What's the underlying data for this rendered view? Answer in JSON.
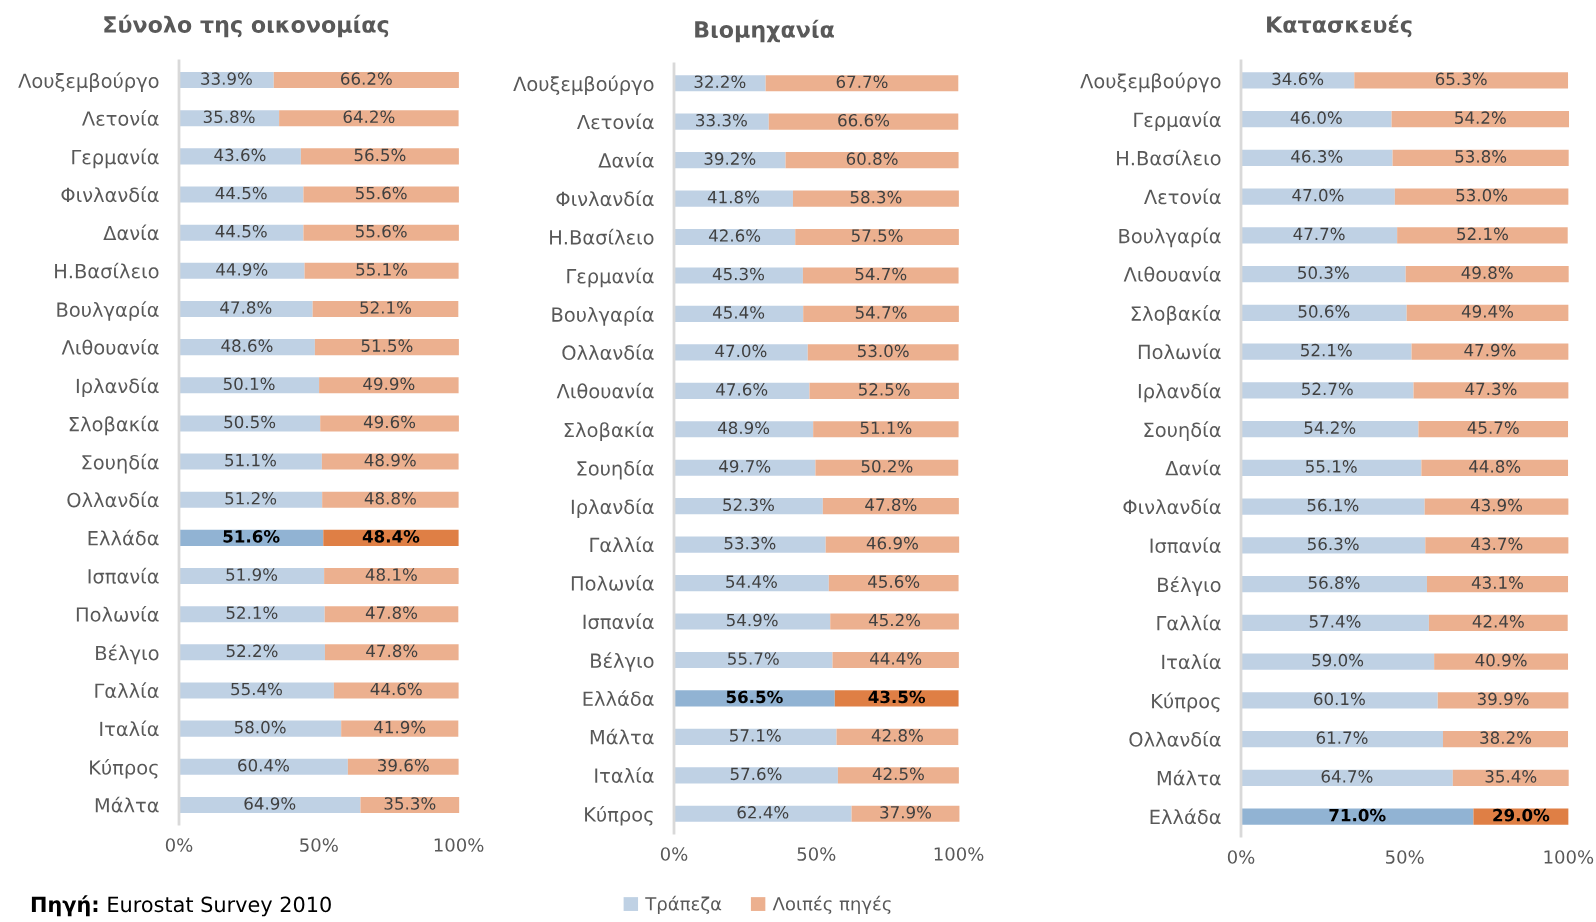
{
  "chart_data": [
    {
      "type": "bar",
      "orientation": "horizontal",
      "stacked": true,
      "title": "Σύνολο της οικονομίας",
      "categories": [
        "Λουξεμβούργο",
        "Λετονία",
        "Γερμανία",
        "Φινλανδία",
        "Δανία",
        "Η.Βασίλειο",
        "Βουλγαρία",
        "Λιθουανία",
        "Ιρλανδία",
        "Σλοβακία",
        "Σουηδία",
        "Ολλανδία",
        "Ελλάδα",
        "Ισπανία",
        "Πολωνία",
        "Βέλγιο",
        "Γαλλία",
        "Ιταλία",
        "Κύπρος",
        "Μάλτα"
      ],
      "series": [
        {
          "color": "#bfd1e4",
          "colors": [
            "#bfd1e4",
            "#bfd1e4",
            "#bfd1e4",
            "#bfd1e4",
            "#bfd1e4",
            "#bfd1e4",
            "#bfd1e4",
            "#bfd1e4",
            "#bfd1e4",
            "#bfd1e4",
            "#bfd1e4",
            "#bfd1e4",
            "#91b3d3",
            "#bfd1e4",
            "#bfd1e4",
            "#bfd1e4",
            "#bfd1e4",
            "#bfd1e4",
            "#bfd1e4",
            "#bfd1e4"
          ],
          "values": [
            33.9,
            35.8,
            43.6,
            44.5,
            44.5,
            44.9,
            47.8,
            48.6,
            50.1,
            50.5,
            51.1,
            51.2,
            51.6,
            51.9,
            52.1,
            52.2,
            55.4,
            58.0,
            60.4,
            64.9
          ],
          "value_labels": [
            "33.9%",
            "35.8%",
            "43.6%",
            "44.5%",
            "44.5%",
            "44.9%",
            "47.8%",
            "48.6%",
            "50.1%",
            "50.5%",
            "51.1%",
            "51.2%",
            "51.6%",
            "51.9%",
            "52.1%",
            "52.2%",
            "55.4%",
            "58.0%",
            "60.4%",
            "64.9%"
          ]
        },
        {
          "color": "#ecb08f",
          "colors": [
            "#ecb08f",
            "#ecb08f",
            "#ecb08f",
            "#ecb08f",
            "#ecb08f",
            "#ecb08f",
            "#ecb08f",
            "#ecb08f",
            "#ecb08f",
            "#ecb08f",
            "#ecb08f",
            "#ecb08f",
            "#df7f45",
            "#ecb08f",
            "#ecb08f",
            "#ecb08f",
            "#ecb08f",
            "#ecb08f",
            "#ecb08f",
            "#ecb08f"
          ],
          "values": [
            66.2,
            64.2,
            56.5,
            55.6,
            55.6,
            55.1,
            52.1,
            51.5,
            49.9,
            49.6,
            48.9,
            48.8,
            48.4,
            48.1,
            47.8,
            47.8,
            44.6,
            41.9,
            39.6,
            35.3
          ],
          "value_labels": [
            "66.2%",
            "64.2%",
            "56.5%",
            "55.6%",
            "55.6%",
            "55.1%",
            "52.1%",
            "51.5%",
            "49.9%",
            "49.6%",
            "48.9%",
            "48.8%",
            "48.4%",
            "48.1%",
            "47.8%",
            "47.8%",
            "44.6%",
            "41.9%",
            "39.6%",
            "35.3%"
          ]
        }
      ],
      "xlim": [
        0,
        100.5
      ],
      "xticks": [
        {
          "value": 0,
          "label": "0%"
        },
        {
          "value": 50,
          "label": "50%"
        },
        {
          "value": 100,
          "label": "100%"
        }
      ],
      "annotations": [
        "Πηγή: Eurostat Survey 2010"
      ]
    },
    {
      "type": "bar",
      "orientation": "horizontal",
      "stacked": true,
      "title": "Βιομηχανία",
      "categories": [
        "Λουξεμβούργο",
        "Λετονία",
        "Δανία",
        "Φινλανδία",
        "Η.Βασίλειο",
        "Γερμανία",
        "Βουλγαρία",
        "Ολλανδία",
        "Λιθουανία",
        "Σλοβακία",
        "Σουηδία",
        "Ιρλανδία",
        "Γαλλία",
        "Πολωνία",
        "Ισπανία",
        "Βέλγιο",
        "Ελλάδα",
        "Μάλτα",
        "Ιταλία",
        "Κύπρος"
      ],
      "series": [
        {
          "name": "Τράπεζα",
          "color": "#bfd1e4",
          "colors": [
            "#bfd1e4",
            "#bfd1e4",
            "#bfd1e4",
            "#bfd1e4",
            "#bfd1e4",
            "#bfd1e4",
            "#bfd1e4",
            "#bfd1e4",
            "#bfd1e4",
            "#bfd1e4",
            "#bfd1e4",
            "#bfd1e4",
            "#bfd1e4",
            "#bfd1e4",
            "#bfd1e4",
            "#bfd1e4",
            "#91b3d3",
            "#bfd1e4",
            "#bfd1e4",
            "#bfd1e4"
          ],
          "values": [
            32.2,
            33.3,
            39.2,
            41.8,
            42.6,
            45.3,
            45.4,
            47.0,
            47.6,
            48.9,
            49.7,
            52.3,
            53.3,
            54.4,
            54.9,
            55.7,
            56.5,
            57.1,
            57.6,
            62.4
          ],
          "value_labels": [
            "32.2%",
            "33.3%",
            "39.2%",
            "41.8%",
            "42.6%",
            "45.3%",
            "45.4%",
            "47.0%",
            "47.6%",
            "48.9%",
            "49.7%",
            "52.3%",
            "53.3%",
            "54.4%",
            "54.9%",
            "55.7%",
            "56.5%",
            "57.1%",
            "57.6%",
            "62.4%"
          ]
        },
        {
          "name": "Λοιπές πηγές",
          "color": "#ecb08f",
          "colors": [
            "#ecb08f",
            "#ecb08f",
            "#ecb08f",
            "#ecb08f",
            "#ecb08f",
            "#ecb08f",
            "#ecb08f",
            "#ecb08f",
            "#ecb08f",
            "#ecb08f",
            "#ecb08f",
            "#ecb08f",
            "#ecb08f",
            "#ecb08f",
            "#ecb08f",
            "#ecb08f",
            "#df7f45",
            "#ecb08f",
            "#ecb08f",
            "#ecb08f"
          ],
          "values": [
            67.7,
            66.6,
            60.8,
            58.3,
            57.5,
            54.7,
            54.7,
            53.0,
            52.5,
            51.1,
            50.2,
            47.8,
            46.9,
            45.6,
            45.2,
            44.4,
            43.5,
            42.8,
            42.5,
            37.9
          ],
          "value_labels": [
            "67.7%",
            "66.6%",
            "60.8%",
            "58.3%",
            "57.5%",
            "54.7%",
            "54.7%",
            "53.0%",
            "52.5%",
            "51.1%",
            "50.2%",
            "47.8%",
            "46.9%",
            "45.6%",
            "45.2%",
            "44.4%",
            "43.5%",
            "42.8%",
            "42.5%",
            "37.9%"
          ]
        }
      ],
      "xlim": [
        0,
        100.5
      ],
      "xticks": [
        {
          "value": 0,
          "label": "0%"
        },
        {
          "value": 50,
          "label": "50%"
        },
        {
          "value": 100,
          "label": "100%"
        }
      ],
      "legend": "bottom"
    },
    {
      "type": "bar",
      "orientation": "horizontal",
      "stacked": true,
      "title": "Κατασκευές",
      "categories": [
        "Λουξεμβούργο",
        "Γερμανία",
        "Η.Βασίλειο",
        "Λετονία",
        "Βουλγαρία",
        "Λιθουανία",
        "Σλοβακία",
        "Πολωνία",
        "Ιρλανδία",
        "Σουηδία",
        "Δανία",
        "Φινλανδία",
        "Ισπανία",
        "Βέλγιο",
        "Γαλλία",
        "Ιταλία",
        "Κύπρος",
        "Ολλανδία",
        "Μάλτα",
        "Ελλάδα"
      ],
      "series": [
        {
          "color": "#bfd1e4",
          "colors": [
            "#bfd1e4",
            "#bfd1e4",
            "#bfd1e4",
            "#bfd1e4",
            "#bfd1e4",
            "#bfd1e4",
            "#bfd1e4",
            "#bfd1e4",
            "#bfd1e4",
            "#bfd1e4",
            "#bfd1e4",
            "#bfd1e4",
            "#bfd1e4",
            "#bfd1e4",
            "#bfd1e4",
            "#bfd1e4",
            "#bfd1e4",
            "#bfd1e4",
            "#bfd1e4",
            "#91b3d3"
          ],
          "values": [
            34.6,
            46.0,
            46.3,
            47.0,
            47.7,
            50.3,
            50.6,
            52.1,
            52.7,
            54.2,
            55.1,
            56.1,
            56.3,
            56.8,
            57.4,
            59.0,
            60.1,
            61.7,
            64.7,
            71.0
          ],
          "value_labels": [
            "34.6%",
            "46.0%",
            "46.3%",
            "47.0%",
            "47.7%",
            "50.3%",
            "50.6%",
            "52.1%",
            "52.7%",
            "54.2%",
            "55.1%",
            "56.1%",
            "56.3%",
            "56.8%",
            "57.4%",
            "59.0%",
            "60.1%",
            "61.7%",
            "64.7%",
            "71.0%"
          ]
        },
        {
          "color": "#ecb08f",
          "colors": [
            "#ecb08f",
            "#ecb08f",
            "#ecb08f",
            "#ecb08f",
            "#ecb08f",
            "#ecb08f",
            "#ecb08f",
            "#ecb08f",
            "#ecb08f",
            "#ecb08f",
            "#ecb08f",
            "#ecb08f",
            "#ecb08f",
            "#ecb08f",
            "#ecb08f",
            "#ecb08f",
            "#ecb08f",
            "#ecb08f",
            "#ecb08f",
            "#df7f45"
          ],
          "values": [
            65.3,
            54.2,
            53.8,
            53.0,
            52.1,
            49.8,
            49.4,
            47.9,
            47.3,
            45.7,
            44.8,
            43.9,
            43.7,
            43.1,
            42.4,
            40.9,
            39.9,
            38.2,
            35.4,
            29.0
          ],
          "value_labels": [
            "65.3%",
            "54.2%",
            "53.8%",
            "53.0%",
            "52.1%",
            "49.8%",
            "49.4%",
            "47.9%",
            "47.3%",
            "45.7%",
            "44.8%",
            "43.9%",
            "43.7%",
            "43.1%",
            "42.4%",
            "40.9%",
            "39.9%",
            "38.2%",
            "35.4%",
            "29.0%"
          ]
        }
      ],
      "xlim": [
        0,
        100.5
      ],
      "xticks": [
        {
          "value": 0,
          "label": "0%"
        },
        {
          "value": 50,
          "label": "50%"
        },
        {
          "value": 100,
          "label": "100%"
        }
      ]
    }
  ]
}
